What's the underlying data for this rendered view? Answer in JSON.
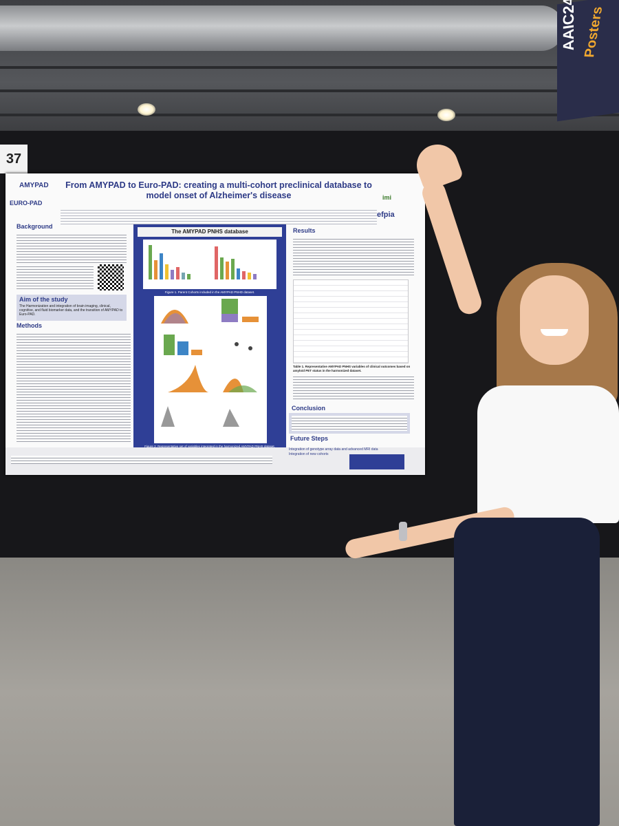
{
  "booth_number": "37",
  "banner": {
    "year": "AAIC24",
    "label": "Posters"
  },
  "poster": {
    "title": "From AMYPAD to Euro-PAD: creating a multi-cohort preclinical database to model onset of Alzheimer's disease",
    "logo_top": "AMYPAD",
    "logo_bottom": "EURO-PAD",
    "sponsor_1": "imi",
    "sponsor_2": "efpia",
    "sections": {
      "background": "Background",
      "aim": "Aim of the study",
      "aim_text": "The Harmonization and integration of brain imaging, clinical, cognitive, and fluid biomarker data, and the transition of AMYPAD to Euro-PAD.",
      "methods": "Methods",
      "center_header": "The AMYPAD PNHS database",
      "fig1_caption": "Figure 1. Parent Cohorts included in the AMYPAD PNHD dataset.",
      "fig2_caption": "Figure 2. Representative set of variables integrated in the harmonized AMYPAD PNHS dataset.",
      "results": "Results",
      "table_caption": "Table 1. Representative AMYPAD PNHS variables of clinical outcomes based on amyloid PET status in the harmonized dataset.",
      "conclusion": "Conclusion",
      "future": "Future Steps",
      "future_1": "Integration of genotype array data and advanced MRI data",
      "future_2": "Integration of new cohorts"
    }
  }
}
